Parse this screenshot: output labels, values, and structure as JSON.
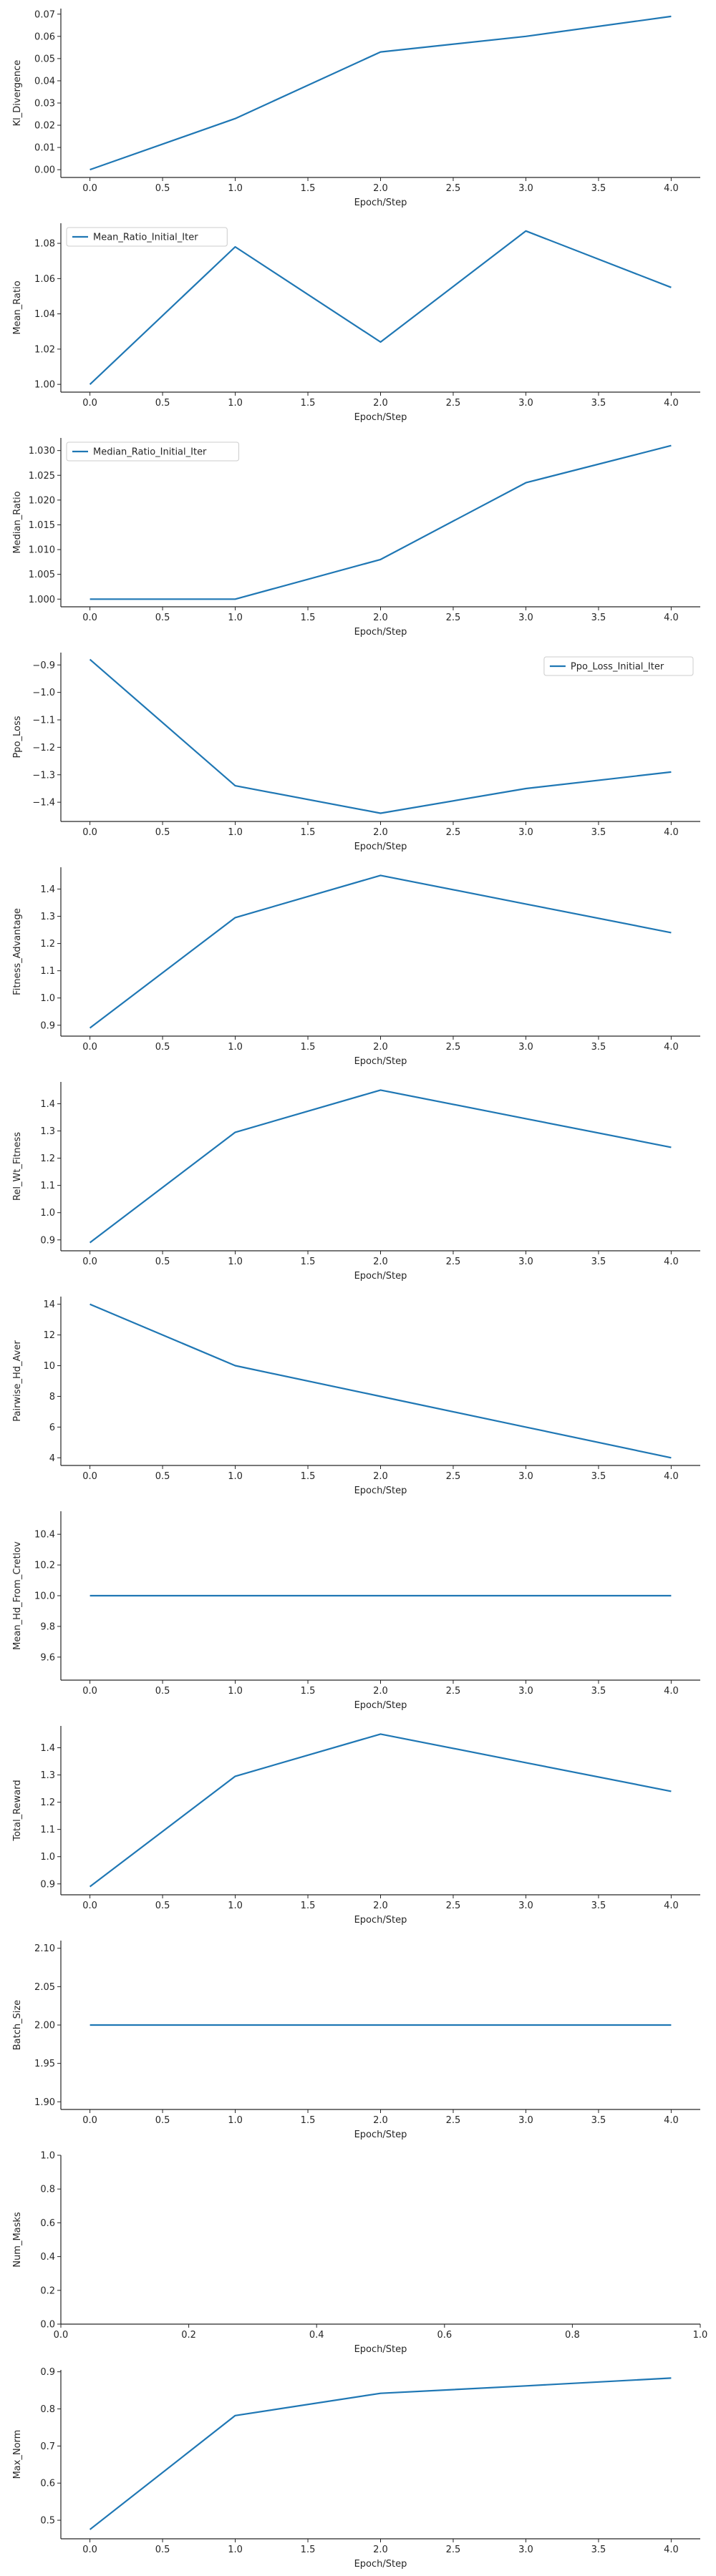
{
  "colors": {
    "line": "#1f77b4",
    "axis": "#262626"
  },
  "chart_data": [
    {
      "type": "line",
      "xlabel": "Epoch/Step",
      "ylabel": "Kl_Divergence",
      "xlim": [
        -0.2,
        4.2
      ],
      "ylim": [
        -0.0035,
        0.0725
      ],
      "xticks": [
        0.0,
        0.5,
        1.0,
        1.5,
        2.0,
        2.5,
        3.0,
        3.5,
        4.0
      ],
      "xtick_labels": [
        "0.0",
        "0.5",
        "1.0",
        "1.5",
        "2.0",
        "2.5",
        "3.0",
        "3.5",
        "4.0"
      ],
      "yticks": [
        0.0,
        0.01,
        0.02,
        0.03,
        0.04,
        0.05,
        0.06,
        0.07
      ],
      "ytick_labels": [
        "0.00",
        "0.01",
        "0.02",
        "0.03",
        "0.04",
        "0.05",
        "0.06",
        "0.07"
      ],
      "legend": null,
      "series": [
        {
          "x": [
            0,
            1,
            2,
            3,
            4
          ],
          "y": [
            0.0,
            0.023,
            0.053,
            0.06,
            0.069
          ]
        }
      ]
    },
    {
      "type": "line",
      "xlabel": "Epoch/Step",
      "ylabel": "Mean_Ratio",
      "xlim": [
        -0.2,
        4.2
      ],
      "ylim": [
        0.9956,
        1.0914
      ],
      "xticks": [
        0.0,
        0.5,
        1.0,
        1.5,
        2.0,
        2.5,
        3.0,
        3.5,
        4.0
      ],
      "xtick_labels": [
        "0.0",
        "0.5",
        "1.0",
        "1.5",
        "2.0",
        "2.5",
        "3.0",
        "3.5",
        "4.0"
      ],
      "yticks": [
        1.0,
        1.02,
        1.04,
        1.06,
        1.08
      ],
      "ytick_labels": [
        "1.00",
        "1.02",
        "1.04",
        "1.06",
        "1.08"
      ],
      "legend": "upper-left",
      "series": [
        {
          "name": "Mean_Ratio_Initial_Iter",
          "x": [
            0,
            1,
            2,
            3,
            4
          ],
          "y": [
            1.0,
            1.078,
            1.024,
            1.087,
            1.055
          ]
        }
      ]
    },
    {
      "type": "line",
      "xlabel": "Epoch/Step",
      "ylabel": "Median_Ratio",
      "xlim": [
        -0.2,
        4.2
      ],
      "ylim": [
        0.99845,
        1.03255
      ],
      "xticks": [
        0.0,
        0.5,
        1.0,
        1.5,
        2.0,
        2.5,
        3.0,
        3.5,
        4.0
      ],
      "xtick_labels": [
        "0.0",
        "0.5",
        "1.0",
        "1.5",
        "2.0",
        "2.5",
        "3.0",
        "3.5",
        "4.0"
      ],
      "yticks": [
        1.0,
        1.005,
        1.01,
        1.015,
        1.02,
        1.025,
        1.03
      ],
      "ytick_labels": [
        "1.000",
        "1.005",
        "1.010",
        "1.015",
        "1.020",
        "1.025",
        "1.030"
      ],
      "legend": "upper-left",
      "series": [
        {
          "name": "Median_Ratio_Initial_Iter",
          "x": [
            0,
            1,
            2,
            3,
            4
          ],
          "y": [
            1.0,
            1.0,
            1.008,
            1.0235,
            1.031
          ]
        }
      ]
    },
    {
      "type": "line",
      "xlabel": "Epoch/Step",
      "ylabel": "Ppo_Loss",
      "xlim": [
        -0.2,
        4.2
      ],
      "ylim": [
        -1.47,
        -0.855
      ],
      "xticks": [
        0.0,
        0.5,
        1.0,
        1.5,
        2.0,
        2.5,
        3.0,
        3.5,
        4.0
      ],
      "xtick_labels": [
        "0.0",
        "0.5",
        "1.0",
        "1.5",
        "2.0",
        "2.5",
        "3.0",
        "3.5",
        "4.0"
      ],
      "yticks": [
        -0.9,
        -1.0,
        -1.1,
        -1.2,
        -1.3,
        -1.4
      ],
      "ytick_labels": [
        "−0.9",
        "−1.0",
        "−1.1",
        "−1.2",
        "−1.3",
        "−1.4"
      ],
      "legend": "upper-right",
      "series": [
        {
          "name": "Ppo_Loss_Initial_Iter",
          "x": [
            0,
            1,
            2,
            3,
            4
          ],
          "y": [
            -0.88,
            -1.34,
            -1.44,
            -1.35,
            -1.29
          ]
        }
      ]
    },
    {
      "type": "line",
      "xlabel": "Epoch/Step",
      "ylabel": "Fitness_Advantage",
      "xlim": [
        -0.2,
        4.2
      ],
      "ylim": [
        0.86,
        1.48
      ],
      "xticks": [
        0.0,
        0.5,
        1.0,
        1.5,
        2.0,
        2.5,
        3.0,
        3.5,
        4.0
      ],
      "xtick_labels": [
        "0.0",
        "0.5",
        "1.0",
        "1.5",
        "2.0",
        "2.5",
        "3.0",
        "3.5",
        "4.0"
      ],
      "yticks": [
        0.9,
        1.0,
        1.1,
        1.2,
        1.3,
        1.4
      ],
      "ytick_labels": [
        "0.9",
        "1.0",
        "1.1",
        "1.2",
        "1.3",
        "1.4"
      ],
      "legend": null,
      "series": [
        {
          "x": [
            0,
            1,
            2,
            3,
            4
          ],
          "y": [
            0.89,
            1.295,
            1.45,
            1.345,
            1.24
          ]
        }
      ]
    },
    {
      "type": "line",
      "xlabel": "Epoch/Step",
      "ylabel": "Rel_Wt_Fitness",
      "xlim": [
        -0.2,
        4.2
      ],
      "ylim": [
        0.86,
        1.48
      ],
      "xticks": [
        0.0,
        0.5,
        1.0,
        1.5,
        2.0,
        2.5,
        3.0,
        3.5,
        4.0
      ],
      "xtick_labels": [
        "0.0",
        "0.5",
        "1.0",
        "1.5",
        "2.0",
        "2.5",
        "3.0",
        "3.5",
        "4.0"
      ],
      "yticks": [
        0.9,
        1.0,
        1.1,
        1.2,
        1.3,
        1.4
      ],
      "ytick_labels": [
        "0.9",
        "1.0",
        "1.1",
        "1.2",
        "1.3",
        "1.4"
      ],
      "legend": null,
      "series": [
        {
          "x": [
            0,
            1,
            2,
            3,
            4
          ],
          "y": [
            0.89,
            1.295,
            1.45,
            1.345,
            1.24
          ]
        }
      ]
    },
    {
      "type": "line",
      "xlabel": "Epoch/Step",
      "ylabel": "Pairwise_Hd_Aver",
      "xlim": [
        -0.2,
        4.2
      ],
      "ylim": [
        3.5,
        14.5
      ],
      "xticks": [
        0.0,
        0.5,
        1.0,
        1.5,
        2.0,
        2.5,
        3.0,
        3.5,
        4.0
      ],
      "xtick_labels": [
        "0.0",
        "0.5",
        "1.0",
        "1.5",
        "2.0",
        "2.5",
        "3.0",
        "3.5",
        "4.0"
      ],
      "yticks": [
        4,
        6,
        8,
        10,
        12,
        14
      ],
      "ytick_labels": [
        "4",
        "6",
        "8",
        "10",
        "12",
        "14"
      ],
      "legend": null,
      "series": [
        {
          "x": [
            0,
            1,
            2,
            3,
            4
          ],
          "y": [
            14,
            10,
            8,
            6,
            4
          ]
        }
      ]
    },
    {
      "type": "line",
      "xlabel": "Epoch/Step",
      "ylabel": "Mean_Hd_From_Cretlov",
      "xlim": [
        -0.2,
        4.2
      ],
      "ylim": [
        9.45,
        10.55
      ],
      "xticks": [
        0.0,
        0.5,
        1.0,
        1.5,
        2.0,
        2.5,
        3.0,
        3.5,
        4.0
      ],
      "xtick_labels": [
        "0.0",
        "0.5",
        "1.0",
        "1.5",
        "2.0",
        "2.5",
        "3.0",
        "3.5",
        "4.0"
      ],
      "yticks": [
        9.6,
        9.8,
        10.0,
        10.2,
        10.4
      ],
      "ytick_labels": [
        "9.6",
        "9.8",
        "10.0",
        "10.2",
        "10.4"
      ],
      "legend": null,
      "series": [
        {
          "x": [
            0,
            1,
            2,
            3,
            4
          ],
          "y": [
            10,
            10,
            10,
            10,
            10
          ]
        }
      ]
    },
    {
      "type": "line",
      "xlabel": "Epoch/Step",
      "ylabel": "Total_Reward",
      "xlim": [
        -0.2,
        4.2
      ],
      "ylim": [
        0.86,
        1.48
      ],
      "xticks": [
        0.0,
        0.5,
        1.0,
        1.5,
        2.0,
        2.5,
        3.0,
        3.5,
        4.0
      ],
      "xtick_labels": [
        "0.0",
        "0.5",
        "1.0",
        "1.5",
        "2.0",
        "2.5",
        "3.0",
        "3.5",
        "4.0"
      ],
      "yticks": [
        0.9,
        1.0,
        1.1,
        1.2,
        1.3,
        1.4
      ],
      "ytick_labels": [
        "0.9",
        "1.0",
        "1.1",
        "1.2",
        "1.3",
        "1.4"
      ],
      "legend": null,
      "series": [
        {
          "x": [
            0,
            1,
            2,
            3,
            4
          ],
          "y": [
            0.89,
            1.295,
            1.45,
            1.345,
            1.24
          ]
        }
      ]
    },
    {
      "type": "line",
      "xlabel": "Epoch/Step",
      "ylabel": "Batch_Size",
      "xlim": [
        -0.2,
        4.2
      ],
      "ylim": [
        1.89,
        2.11
      ],
      "xticks": [
        0.0,
        0.5,
        1.0,
        1.5,
        2.0,
        2.5,
        3.0,
        3.5,
        4.0
      ],
      "xtick_labels": [
        "0.0",
        "0.5",
        "1.0",
        "1.5",
        "2.0",
        "2.5",
        "3.0",
        "3.5",
        "4.0"
      ],
      "yticks": [
        1.9,
        1.95,
        2.0,
        2.05,
        2.1
      ],
      "ytick_labels": [
        "1.90",
        "1.95",
        "2.00",
        "2.05",
        "2.10"
      ],
      "legend": null,
      "series": [
        {
          "x": [
            0,
            1,
            2,
            3,
            4
          ],
          "y": [
            2,
            2,
            2,
            2,
            2
          ]
        }
      ]
    },
    {
      "type": "line",
      "xlabel": "Epoch/Step",
      "ylabel": "Num_Masks",
      "xlim": [
        0,
        1
      ],
      "ylim": [
        0,
        1
      ],
      "xticks": [
        0.0,
        0.2,
        0.4,
        0.6,
        0.8,
        1.0
      ],
      "xtick_labels": [
        "0.0",
        "0.2",
        "0.4",
        "0.6",
        "0.8",
        "1.0"
      ],
      "yticks": [
        0.0,
        0.2,
        0.4,
        0.6,
        0.8,
        1.0
      ],
      "ytick_labels": [
        "0.0",
        "0.2",
        "0.4",
        "0.6",
        "0.8",
        "1.0"
      ],
      "legend": null,
      "series": []
    },
    {
      "type": "line",
      "xlabel": "Epoch/Step",
      "ylabel": "Max_Norm",
      "xlim": [
        -0.2,
        4.2
      ],
      "ylim": [
        0.45,
        0.905
      ],
      "xticks": [
        0.0,
        0.5,
        1.0,
        1.5,
        2.0,
        2.5,
        3.0,
        3.5,
        4.0
      ],
      "xtick_labels": [
        "0.0",
        "0.5",
        "1.0",
        "1.5",
        "2.0",
        "2.5",
        "3.0",
        "3.5",
        "4.0"
      ],
      "yticks": [
        0.5,
        0.6,
        0.7,
        0.8,
        0.9
      ],
      "ytick_labels": [
        "0.5",
        "0.6",
        "0.7",
        "0.8",
        "0.9"
      ],
      "legend": null,
      "series": [
        {
          "x": [
            0,
            1,
            2,
            3,
            4
          ],
          "y": [
            0.475,
            0.782,
            0.842,
            0.862,
            0.883
          ]
        }
      ]
    }
  ]
}
